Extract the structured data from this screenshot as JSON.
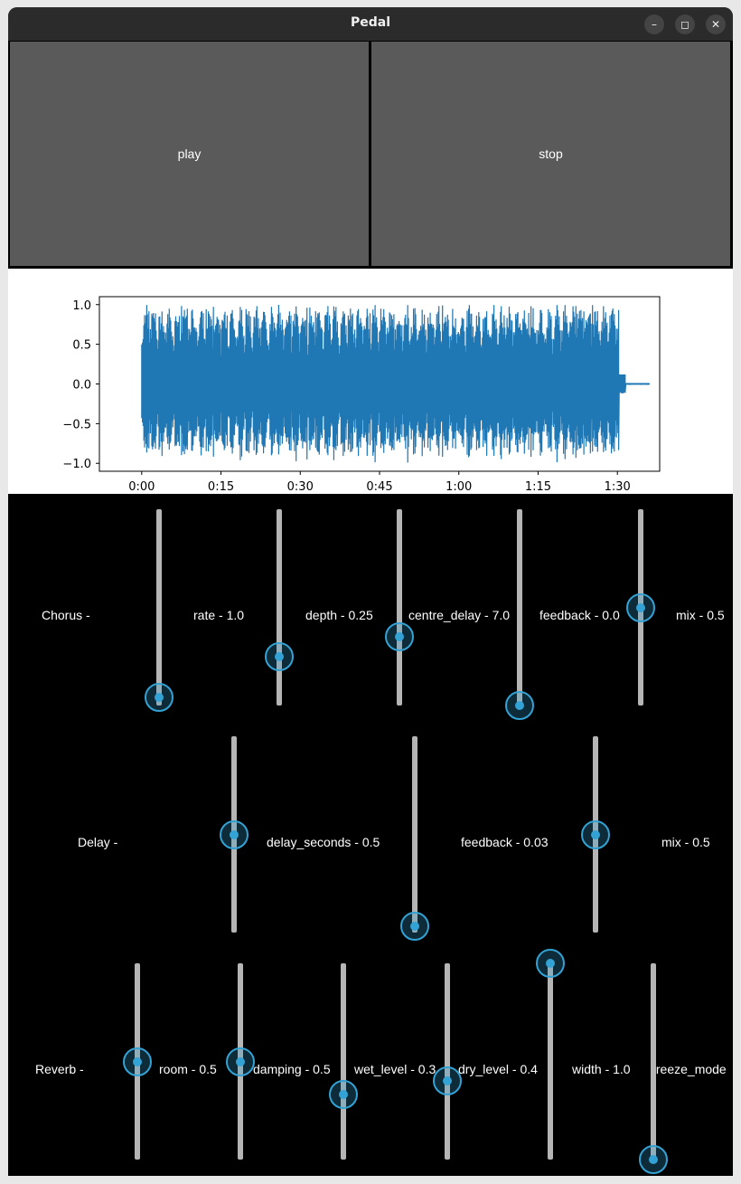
{
  "window": {
    "title": "Pedal",
    "minimize_icon": "minimize-icon",
    "maximize_icon": "maximize-icon",
    "close_icon": "close-icon"
  },
  "buttons": {
    "play": "play",
    "stop": "stop"
  },
  "waveform": {
    "color": "#1f77b4"
  },
  "chart_data": {
    "type": "line",
    "title": "",
    "xlabel": "",
    "ylabel": "",
    "x_ticks": [
      "0:00",
      "0:15",
      "0:30",
      "0:45",
      "1:00",
      "1:15",
      "1:30"
    ],
    "y_ticks": [
      "1.0",
      "0.5",
      "0.0",
      "−0.5",
      "−1.0"
    ],
    "ylim": [
      -1.1,
      1.1
    ],
    "xlim_seconds": [
      -8,
      98
    ],
    "series": [
      {
        "color": "#1f77b4",
        "duration_seconds": 96,
        "signal_end_seconds": 91.5,
        "peak_max": 1.0,
        "peak_min": -1.0
      }
    ]
  },
  "sections": [
    {
      "label": "Chorus -",
      "sliders": [
        {
          "label": "rate - 1.0",
          "level": 0.04
        },
        {
          "label": "depth - 0.25",
          "level": 0.25
        },
        {
          "label": "centre_delay - 7.0",
          "level": 0.35
        },
        {
          "label": "feedback - 0.0",
          "level": 0.0
        },
        {
          "label": "mix - 0.5",
          "level": 0.5
        }
      ]
    },
    {
      "label": "Delay -",
      "sliders": [
        {
          "label": "delay_seconds - 0.5",
          "level": 0.5
        },
        {
          "label": "feedback - 0.03",
          "level": 0.03
        },
        {
          "label": "mix - 0.5",
          "level": 0.5
        }
      ]
    },
    {
      "label": "Reverb -",
      "sliders": [
        {
          "label": "room - 0.5",
          "level": 0.5
        },
        {
          "label": "damping - 0.5",
          "level": 0.5
        },
        {
          "label": "wet_level - 0.3",
          "level": 0.33
        },
        {
          "label": "dry_level - 0.4",
          "level": 0.4
        },
        {
          "label": "width - 1.0",
          "level": 1.0
        },
        {
          "label": "freeze_mode",
          "level": 0.0
        }
      ]
    }
  ]
}
